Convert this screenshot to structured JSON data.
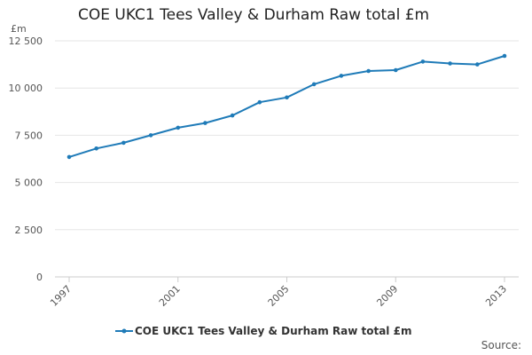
{
  "chart_data": {
    "type": "line",
    "title": "COE UKC1 Tees Valley & Durham Raw total £m",
    "ylabel": "£m",
    "xlabel": "",
    "ylim": [
      0,
      12500
    ],
    "yticks": [
      "0",
      "2 500",
      "5 000",
      "7 500",
      "10 000",
      "12 500"
    ],
    "ytick_values": [
      0,
      2500,
      5000,
      7500,
      10000,
      12500
    ],
    "xlim": [
      1997,
      2013
    ],
    "xticks": [
      "1997",
      "2001",
      "2005",
      "2009",
      "2013"
    ],
    "xtick_values": [
      1997,
      2001,
      2005,
      2009,
      2013
    ],
    "grid": true,
    "legend_position": "bottom",
    "series": [
      {
        "name": "COE UKC1 Tees Valley & Durham Raw total £m",
        "color": "#1f7bb8",
        "x": [
          1997,
          1998,
          1999,
          2000,
          2001,
          2002,
          2003,
          2004,
          2005,
          2006,
          2007,
          2008,
          2009,
          2010,
          2011,
          2012,
          2013
        ],
        "values": [
          6350,
          6800,
          7100,
          7500,
          7900,
          8150,
          8550,
          9250,
          9500,
          10200,
          10650,
          10900,
          10950,
          11400,
          11300,
          11250,
          11700
        ]
      }
    ]
  },
  "footer": {
    "source": "Source:"
  }
}
